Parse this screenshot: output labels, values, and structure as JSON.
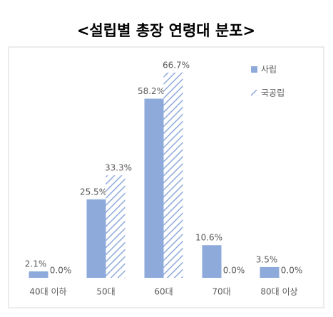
{
  "chart_data": {
    "type": "bar",
    "title": "<설립별 총장 연령대 분포>",
    "categories": [
      "40대 이하",
      "50대",
      "60대",
      "70대",
      "80대 이상"
    ],
    "series": [
      {
        "name": "사립",
        "color": "#8eaadb",
        "fill": "solid",
        "values": [
          2.1,
          25.5,
          58.2,
          10.6,
          3.5
        ],
        "value_labels": [
          "2.1%",
          "25.5%",
          "58.2%",
          "10.6%",
          "3.5%"
        ]
      },
      {
        "name": "국공립",
        "color": "#8eaadb",
        "fill": "hatch",
        "values": [
          0.0,
          33.3,
          66.7,
          0.0,
          0.0
        ],
        "value_labels": [
          "0.0%",
          "33.3%",
          "66.7%",
          "0.0%",
          "0.0%"
        ]
      }
    ],
    "legend": "top-right"
  }
}
